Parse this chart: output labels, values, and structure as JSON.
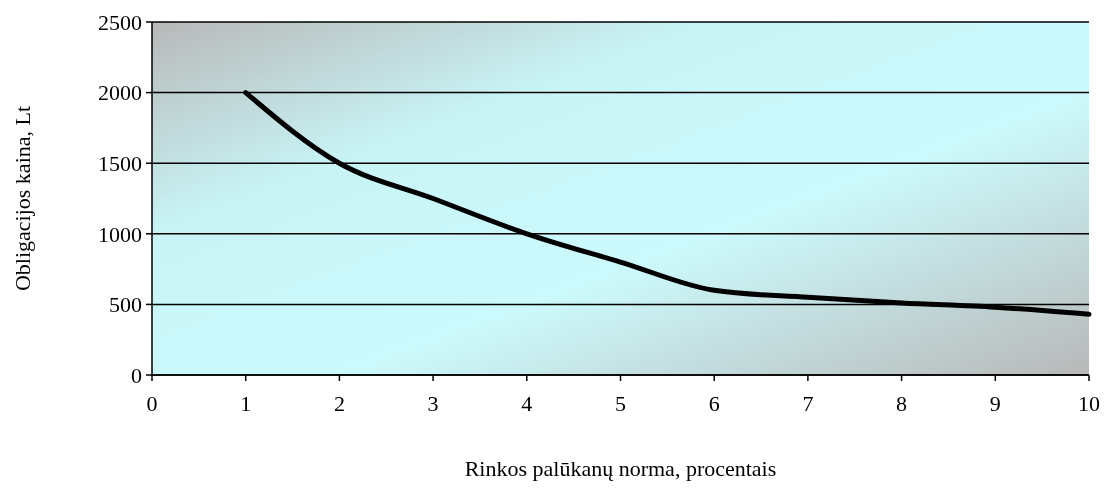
{
  "chart_data": {
    "type": "line",
    "xlabel": "Rinkos palūkanų norma, procentais",
    "ylabel": "Obligacijos kaina, Lt",
    "x": [
      1,
      2,
      3,
      4,
      5,
      6,
      7,
      8,
      9,
      10
    ],
    "series": [
      {
        "color": "#000000",
        "values": [
          2000,
          1500,
          1250,
          1000,
          800,
          600,
          550,
          510,
          480,
          430
        ]
      }
    ],
    "xlim": [
      0,
      10
    ],
    "xticks": [
      0,
      1,
      2,
      3,
      4,
      5,
      6,
      7,
      8,
      9,
      10
    ],
    "ylim": [
      0,
      2500
    ],
    "yticks": [
      0,
      500,
      1000,
      1500,
      2000,
      2500
    ],
    "grid": "y",
    "marker": "none",
    "line_style": "solid"
  }
}
